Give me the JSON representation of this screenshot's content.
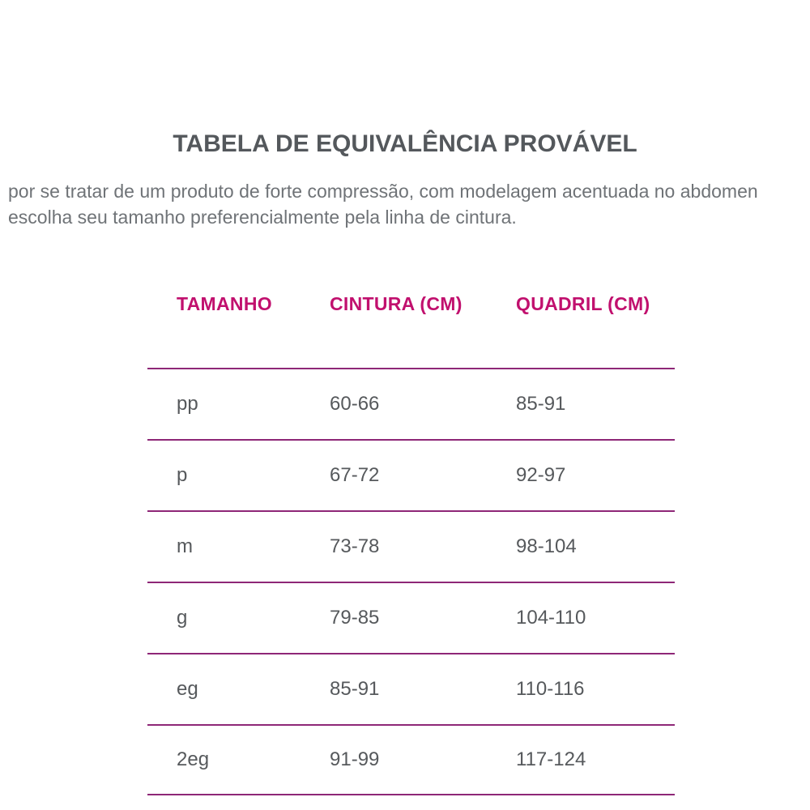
{
  "page": {
    "title": "TABELA DE EQUIVALÊNCIA PROVÁVEL",
    "intro": {
      "full_text": "por se tratar de um produto de forte compressão, com modelagem acentuada no abdomen escolha seu tamanho preferencialmente pela linha de cintura.",
      "lines": [
        "por se tratar de um produto de forte compressão, com modelagem acentuada no abdomen",
        "escolha seu tamanho preferencialmente pela linha de cintura."
      ]
    }
  },
  "chart_data": {
    "type": "table",
    "title": "TABELA DE EQUIVALÊNCIA PROVÁVEL",
    "columns": [
      "TAMANHO",
      "CINTURA (CM)",
      "QUADRIL (CM)"
    ],
    "rows": [
      [
        "pp",
        "60-66",
        "85-91"
      ],
      [
        "p",
        "67-72",
        "92-97"
      ],
      [
        "m",
        "73-78",
        "98-104"
      ],
      [
        "g",
        "79-85",
        "104-110"
      ],
      [
        "eg",
        "85-91",
        "110-116"
      ],
      [
        "2eg",
        "91-99",
        "117-124"
      ]
    ],
    "layout_hints": {
      "header_alignment": "left",
      "row_dividers": true,
      "units": "cm"
    }
  },
  "colors": {
    "title_text": "#54585c",
    "body_text": "#6f7377",
    "table_header_text": "#c1106e",
    "divider_line": "#8e2777",
    "cell_text": "#56595c",
    "background": "#ffffff"
  }
}
